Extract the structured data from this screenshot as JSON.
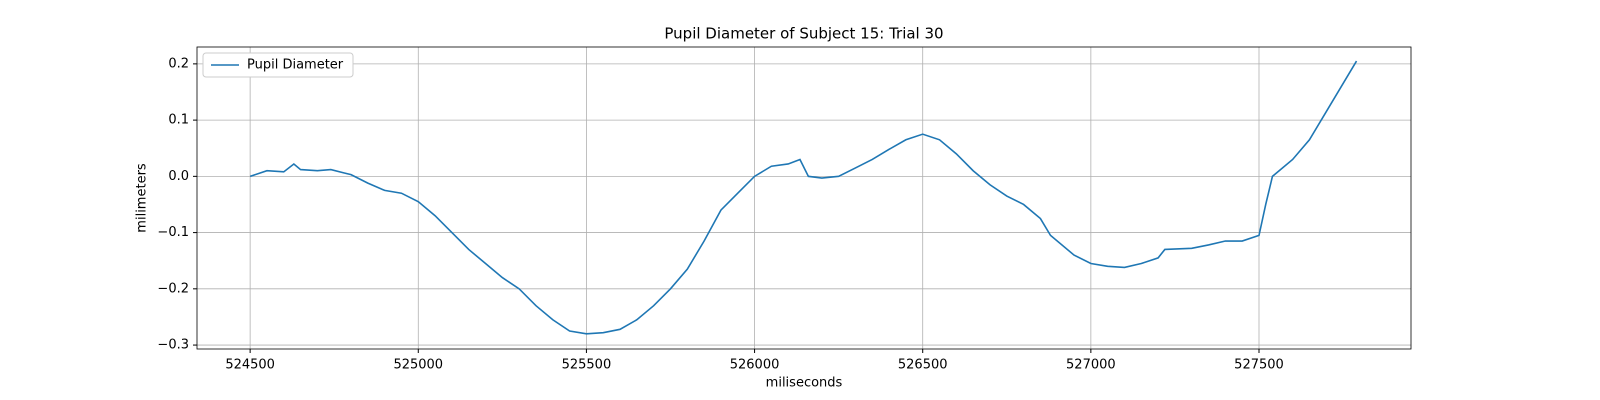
{
  "chart_data": {
    "type": "line",
    "title": "Pupil Diameter of Subject 15: Trial 30",
    "x_label": "miliseconds",
    "y_label": "milimeters",
    "x": [
      524500,
      524550,
      524600,
      524630,
      524650,
      524700,
      524740,
      524780,
      524800,
      524850,
      524900,
      524950,
      525000,
      525050,
      525100,
      525150,
      525200,
      525250,
      525300,
      525350,
      525400,
      525450,
      525500,
      525550,
      525600,
      525650,
      525700,
      525750,
      525800,
      525850,
      525900,
      525950,
      526000,
      526050,
      526100,
      526135,
      526160,
      526200,
      526250,
      526300,
      526350,
      526400,
      526450,
      526500,
      526550,
      526600,
      526650,
      526700,
      526750,
      526800,
      526850,
      526880,
      526950,
      527000,
      527050,
      527100,
      527150,
      527200,
      527220,
      527300,
      527350,
      527400,
      527450,
      527500,
      527520,
      527540,
      527600,
      527650,
      527700,
      527750,
      527790
    ],
    "series": [
      {
        "name": "Pupil Diameter",
        "color": "#1f77b4",
        "values": [
          0.0,
          0.01,
          0.008,
          0.022,
          0.012,
          0.01,
          0.012,
          0.006,
          0.003,
          -0.012,
          -0.025,
          -0.03,
          -0.045,
          -0.07,
          -0.1,
          -0.13,
          -0.155,
          -0.18,
          -0.2,
          -0.23,
          -0.255,
          -0.275,
          -0.28,
          -0.278,
          -0.272,
          -0.255,
          -0.23,
          -0.2,
          -0.165,
          -0.115,
          -0.06,
          -0.03,
          0.0,
          0.018,
          0.022,
          0.03,
          0.0,
          -0.003,
          0.0,
          0.015,
          0.03,
          0.048,
          0.065,
          0.075,
          0.065,
          0.04,
          0.01,
          -0.015,
          -0.035,
          -0.05,
          -0.075,
          -0.105,
          -0.14,
          -0.155,
          -0.16,
          -0.162,
          -0.155,
          -0.145,
          -0.13,
          -0.128,
          -0.122,
          -0.115,
          -0.115,
          -0.105,
          -0.05,
          0.0,
          0.03,
          0.065,
          0.115,
          0.165,
          0.205
        ]
      }
    ],
    "xlim": [
      524342,
      527952
    ],
    "ylim": [
      -0.307,
      0.23
    ],
    "xticks": [
      524500,
      525000,
      525500,
      526000,
      526500,
      527000,
      527500
    ],
    "yticks": [
      {
        "value": -0.3,
        "label": "−0.3"
      },
      {
        "value": -0.2,
        "label": "−0.2"
      },
      {
        "value": -0.1,
        "label": "−0.1"
      },
      {
        "value": 0,
        "label": "0.0"
      },
      0.1,
      0.2
    ],
    "grid": true,
    "legend": "upper-left"
  }
}
